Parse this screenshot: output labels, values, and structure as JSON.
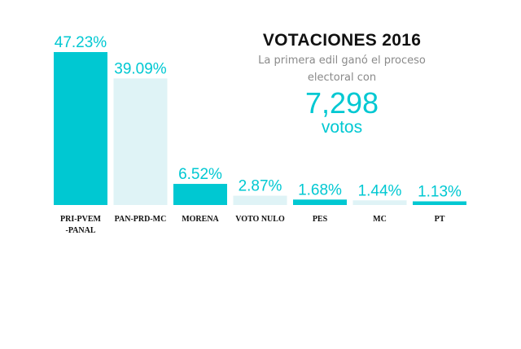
{
  "colors": {
    "accent": "#00c8d2",
    "light_bar": "#dff3f6",
    "label_text": "#111111",
    "subtitle_text": "#8a8a8a"
  },
  "headline": {
    "title": "VOTACIONES 2016",
    "subtitle": "La primera edil ganó el proceso electoral con",
    "number": "7,298",
    "unit": "votos"
  },
  "chart_data": {
    "type": "bar",
    "categories": [
      [
        "PRI-PVEM",
        "-PANAL"
      ],
      [
        "PAN-PRD-MC"
      ],
      [
        "MORENA"
      ],
      [
        "VOTO NULO"
      ],
      [
        "PES"
      ],
      [
        "MC"
      ],
      [
        "PT"
      ]
    ],
    "values": [
      47.23,
      39.09,
      6.52,
      2.87,
      1.68,
      1.44,
      1.13
    ],
    "labels": [
      "47.23%",
      "39.09%",
      "6.52%",
      "2.87%",
      "1.68%",
      "1.44%",
      "1.13%"
    ],
    "bar_colors": [
      "#00c8d2",
      "#dff3f6",
      "#00c8d2",
      "#dff3f6",
      "#00c8d2",
      "#dff3f6",
      "#00c8d2"
    ],
    "label_colors": [
      "#00c8d2",
      "#00c8d2",
      "#00c8d2",
      "#00c8d2",
      "#00c8d2",
      "#00c8d2",
      "#00c8d2"
    ],
    "ylim": [
      0,
      47.23
    ],
    "grid": false,
    "legend": "none"
  }
}
